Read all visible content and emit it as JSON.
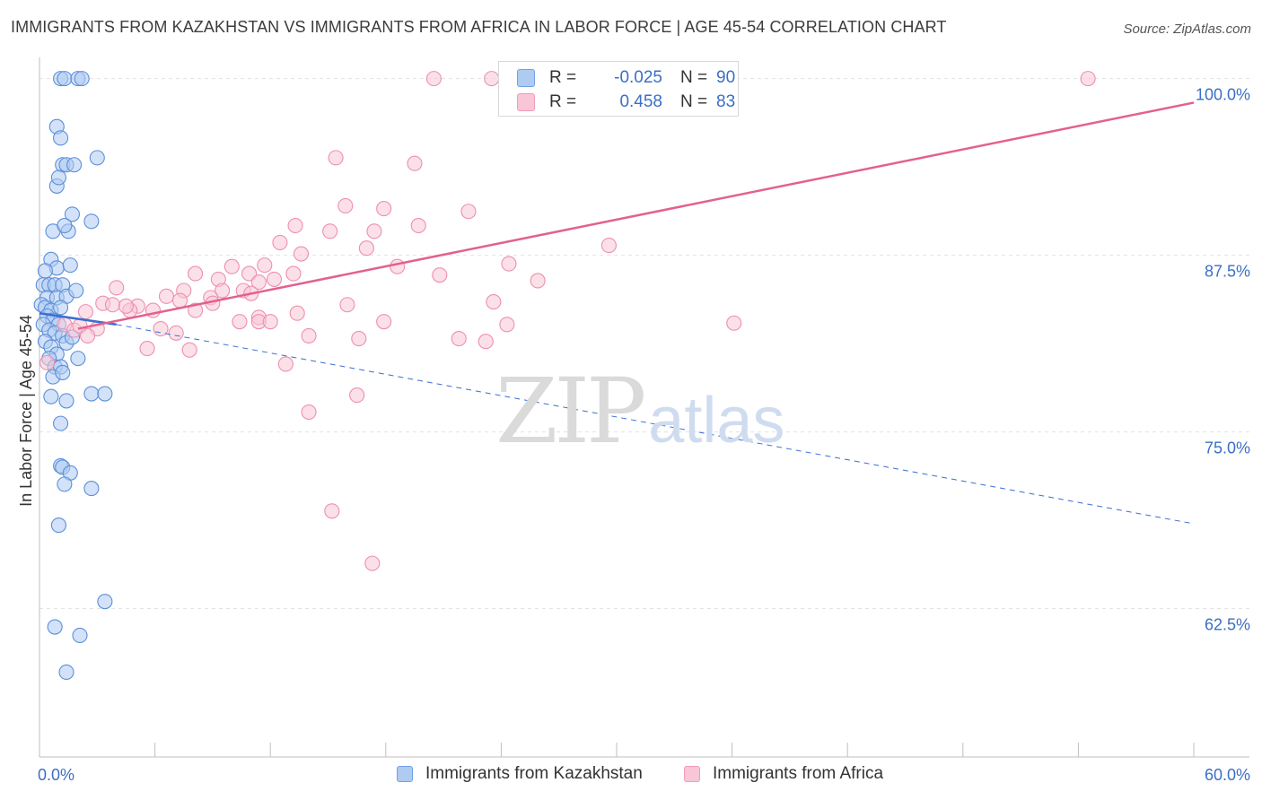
{
  "title": "IMMIGRANTS FROM KAZAKHSTAN VS IMMIGRANTS FROM AFRICA IN LABOR FORCE | AGE 45-54 CORRELATION CHART",
  "source": "Source: ZipAtlas.com",
  "watermark": {
    "zip": "ZIP",
    "atlas": "atlas"
  },
  "stats_legend": [
    {
      "r_label": "R =",
      "r_value": "-0.025",
      "n_label": "N =",
      "n_value": "90",
      "color": "#6fa0e8"
    },
    {
      "r_label": "R =",
      "r_value": "0.458",
      "n_label": "N =",
      "n_value": "83",
      "color": "#f29bb8"
    }
  ],
  "colors": {
    "kazakhstan_fill": "#aecbf2",
    "kazakhstan_stroke": "#5b8fd9",
    "kazakhstan_line": "#3b6fd0",
    "africa_fill": "#f8c6d6",
    "africa_stroke": "#ee8fb0",
    "africa_line": "#e3608f",
    "tick_label": "#3a6fc4",
    "grid": "#e3e3e3"
  },
  "chart_data": {
    "type": "scatter",
    "title": "IMMIGRANTS FROM KAZAKHSTAN VS IMMIGRANTS FROM AFRICA IN LABOR FORCE | AGE 45-54 CORRELATION CHART",
    "xlabel": "",
    "ylabel": "In Labor Force | Age 45-54",
    "xlim": [
      0,
      60
    ],
    "ylim": [
      52,
      101.5
    ],
    "x_tick_labels": [
      "0.0%",
      "60.0%"
    ],
    "y_ticks": [
      62.5,
      75.0,
      87.5,
      100.0
    ],
    "y_tick_labels": [
      "62.5%",
      "75.0%",
      "87.5%",
      "100.0%"
    ],
    "legend": [
      "Immigrants from Kazakhstan",
      "Immigrants from Africa"
    ],
    "series": [
      {
        "name": "Immigrants from Kazakhstan",
        "points": [
          [
            1.1,
            100
          ],
          [
            1.3,
            100
          ],
          [
            2.0,
            100
          ],
          [
            2.2,
            100
          ],
          [
            0.9,
            96.6
          ],
          [
            1.1,
            95.8
          ],
          [
            1.2,
            93.9
          ],
          [
            1.4,
            93.9
          ],
          [
            1.8,
            93.9
          ],
          [
            3.0,
            94.4
          ],
          [
            0.9,
            92.4
          ],
          [
            1.0,
            93.0
          ],
          [
            1.7,
            90.4
          ],
          [
            2.7,
            89.9
          ],
          [
            0.7,
            89.2
          ],
          [
            1.5,
            89.2
          ],
          [
            1.3,
            89.6
          ],
          [
            0.6,
            87.2
          ],
          [
            0.9,
            86.6
          ],
          [
            0.3,
            86.4
          ],
          [
            1.6,
            86.8
          ],
          [
            0.2,
            85.4
          ],
          [
            0.5,
            85.4
          ],
          [
            0.8,
            85.4
          ],
          [
            1.2,
            85.4
          ],
          [
            0.4,
            84.5
          ],
          [
            0.9,
            84.5
          ],
          [
            1.4,
            84.6
          ],
          [
            1.9,
            85.0
          ],
          [
            0.1,
            84.0
          ],
          [
            0.3,
            83.8
          ],
          [
            0.6,
            83.6
          ],
          [
            1.1,
            83.8
          ],
          [
            0.4,
            83.2
          ],
          [
            0.7,
            82.9
          ],
          [
            1.0,
            82.6
          ],
          [
            0.2,
            82.6
          ],
          [
            0.5,
            82.2
          ],
          [
            0.8,
            82.0
          ],
          [
            1.2,
            81.8
          ],
          [
            0.3,
            81.4
          ],
          [
            0.6,
            81.0
          ],
          [
            0.9,
            80.5
          ],
          [
            1.4,
            81.3
          ],
          [
            1.7,
            81.7
          ],
          [
            0.5,
            80.2
          ],
          [
            2.0,
            80.2
          ],
          [
            0.8,
            79.6
          ],
          [
            1.1,
            79.6
          ],
          [
            0.7,
            78.9
          ],
          [
            1.2,
            79.2
          ],
          [
            0.6,
            77.5
          ],
          [
            2.7,
            77.7
          ],
          [
            3.4,
            77.7
          ],
          [
            1.4,
            77.2
          ],
          [
            1.1,
            75.6
          ],
          [
            1.1,
            72.6
          ],
          [
            1.2,
            72.5
          ],
          [
            1.6,
            72.1
          ],
          [
            1.3,
            71.3
          ],
          [
            2.7,
            71.0
          ],
          [
            1.0,
            68.4
          ],
          [
            3.4,
            63.0
          ],
          [
            0.8,
            61.2
          ],
          [
            2.1,
            60.6
          ],
          [
            1.4,
            58.0
          ]
        ]
      },
      {
        "name": "Immigrants from Africa",
        "points": [
          [
            20.5,
            100
          ],
          [
            23.5,
            100
          ],
          [
            54.5,
            100
          ],
          [
            15.4,
            94.4
          ],
          [
            19.5,
            94.0
          ],
          [
            15.9,
            91.0
          ],
          [
            17.9,
            90.8
          ],
          [
            22.3,
            90.6
          ],
          [
            13.3,
            89.6
          ],
          [
            15.1,
            89.2
          ],
          [
            17.4,
            89.2
          ],
          [
            19.7,
            89.6
          ],
          [
            12.5,
            88.4
          ],
          [
            17.0,
            88.0
          ],
          [
            29.6,
            88.2
          ],
          [
            13.6,
            87.6
          ],
          [
            10.0,
            86.7
          ],
          [
            10.9,
            86.2
          ],
          [
            11.7,
            86.8
          ],
          [
            18.6,
            86.7
          ],
          [
            20.8,
            86.1
          ],
          [
            24.4,
            86.9
          ],
          [
            8.1,
            86.2
          ],
          [
            9.3,
            85.8
          ],
          [
            12.2,
            85.8
          ],
          [
            13.2,
            86.2
          ],
          [
            25.9,
            85.7
          ],
          [
            11.4,
            85.6
          ],
          [
            4.0,
            85.2
          ],
          [
            7.5,
            85.0
          ],
          [
            9.5,
            85.0
          ],
          [
            10.6,
            85.0
          ],
          [
            11.0,
            84.8
          ],
          [
            6.6,
            84.6
          ],
          [
            8.9,
            84.5
          ],
          [
            3.3,
            84.1
          ],
          [
            3.8,
            84.0
          ],
          [
            5.1,
            83.9
          ],
          [
            7.3,
            84.3
          ],
          [
            9.0,
            84.1
          ],
          [
            16.0,
            84.0
          ],
          [
            23.6,
            84.2
          ],
          [
            4.7,
            83.6
          ],
          [
            5.9,
            83.6
          ],
          [
            8.1,
            83.6
          ],
          [
            13.4,
            83.4
          ],
          [
            11.4,
            83.1
          ],
          [
            10.4,
            82.8
          ],
          [
            11.4,
            82.8
          ],
          [
            12.0,
            82.8
          ],
          [
            17.9,
            82.8
          ],
          [
            24.3,
            82.6
          ],
          [
            36.1,
            82.7
          ],
          [
            1.3,
            82.6
          ],
          [
            1.8,
            82.2
          ],
          [
            2.1,
            82.5
          ],
          [
            3.0,
            82.3
          ],
          [
            2.5,
            81.8
          ],
          [
            6.3,
            82.3
          ],
          [
            7.1,
            82.0
          ],
          [
            14.0,
            81.8
          ],
          [
            16.6,
            81.6
          ],
          [
            21.8,
            81.6
          ],
          [
            23.2,
            81.4
          ],
          [
            5.6,
            80.9
          ],
          [
            7.8,
            80.8
          ],
          [
            12.8,
            79.8
          ],
          [
            16.5,
            77.6
          ],
          [
            14.0,
            76.4
          ],
          [
            15.2,
            69.4
          ],
          [
            17.3,
            65.7
          ],
          [
            0.4,
            79.9
          ],
          [
            2.4,
            83.5
          ],
          [
            4.5,
            83.9
          ]
        ]
      }
    ],
    "trend_lines": [
      {
        "series": "Immigrants from Kazakhstan",
        "solid": [
          [
            0,
            83.4
          ],
          [
            4,
            82.6
          ]
        ],
        "dashed": [
          [
            4,
            82.6
          ],
          [
            60,
            68.5
          ]
        ]
      },
      {
        "series": "Immigrants from Africa",
        "solid": [
          [
            2,
            82.3
          ],
          [
            60,
            98.3
          ]
        ]
      }
    ]
  }
}
